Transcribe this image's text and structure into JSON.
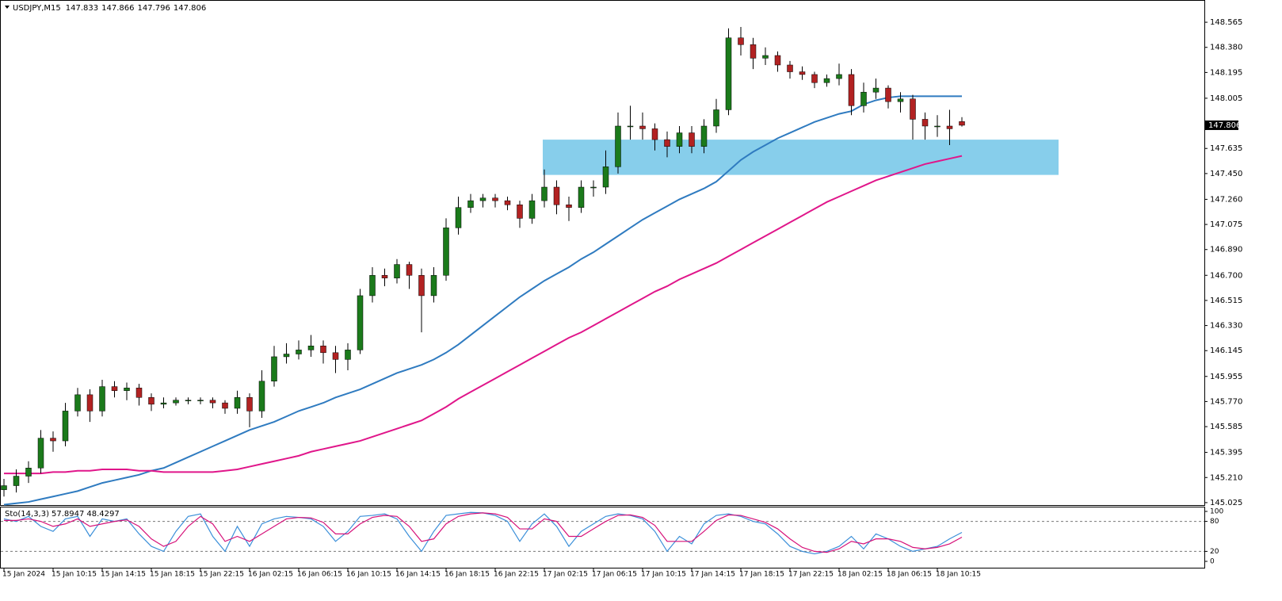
{
  "chart_data": [
    {
      "type": "candlestick",
      "title": "USDJPY,M15",
      "categories": [
        "15 Jan 2024",
        null,
        null,
        null,
        "15 Jan 10:15",
        null,
        null,
        null,
        "15 Jan 14:15",
        null,
        null,
        null,
        "15 Jan 18:15",
        null,
        null,
        null,
        "15 Jan 22:15",
        null,
        null,
        null,
        "16 Jan 02:15",
        null,
        null,
        null,
        "16 Jan 06:15",
        null,
        null,
        null,
        "16 Jan 10:15",
        null,
        null,
        null,
        "16 Jan 14:15",
        null,
        null,
        null,
        "16 Jan 18:15",
        null,
        null,
        null,
        "16 Jan 22:15",
        null,
        null,
        null,
        "17 Jan 02:15",
        null,
        null,
        null,
        "17 Jan 06:15",
        null,
        null,
        null,
        "17 Jan 10:15",
        null,
        null,
        null,
        "17 Jan 14:15",
        null,
        null,
        null,
        "17 Jan 18:15",
        null,
        null,
        null,
        "17 Jan 22:15",
        null,
        null,
        null,
        "18 Jan 02:15",
        null,
        null,
        null,
        "18 Jan 06:15",
        null,
        null,
        null,
        "18 Jan 10:15",
        null,
        null
      ],
      "open": [
        145.12,
        145.15,
        145.22,
        145.28,
        145.5,
        145.48,
        145.7,
        145.82,
        145.7,
        145.88,
        145.85,
        145.87,
        145.8,
        145.75,
        145.76,
        145.78,
        145.78,
        145.78,
        145.76,
        145.72,
        145.8,
        145.7,
        145.92,
        146.1,
        146.12,
        146.15,
        146.18,
        146.13,
        146.08,
        146.15,
        146.55,
        146.7,
        146.68,
        146.78,
        146.7,
        146.55,
        146.7,
        147.05,
        147.2,
        147.25,
        147.27,
        147.25,
        147.22,
        147.12,
        147.25,
        147.35,
        147.22,
        147.2,
        147.35,
        147.35,
        147.5,
        147.8,
        147.8,
        147.78,
        147.7,
        147.65,
        147.75,
        147.65,
        147.8,
        147.92,
        148.45,
        148.4,
        148.3,
        148.32,
        148.25,
        148.2,
        148.18,
        148.12,
        148.15,
        148.18,
        147.95,
        148.05,
        148.08,
        147.98,
        148.0,
        147.85,
        147.8,
        147.8,
        147.833
      ],
      "high": [
        145.2,
        145.27,
        145.33,
        145.56,
        145.55,
        145.76,
        145.87,
        145.86,
        145.93,
        145.92,
        145.91,
        145.9,
        145.83,
        145.8,
        145.8,
        145.8,
        145.8,
        145.8,
        145.78,
        145.85,
        145.83,
        146.0,
        146.18,
        146.2,
        146.22,
        146.26,
        146.22,
        146.18,
        146.2,
        146.6,
        146.76,
        146.75,
        146.82,
        146.8,
        146.75,
        146.76,
        147.12,
        147.28,
        147.3,
        147.3,
        147.3,
        147.28,
        147.25,
        147.3,
        147.48,
        147.4,
        147.28,
        147.4,
        147.4,
        147.62,
        147.9,
        147.95,
        147.9,
        147.82,
        147.76,
        147.8,
        147.8,
        147.85,
        148.0,
        148.52,
        148.53,
        148.45,
        148.38,
        148.35,
        148.28,
        148.24,
        148.2,
        148.18,
        148.26,
        148.22,
        148.12,
        148.15,
        148.1,
        148.05,
        148.03,
        147.9,
        147.88,
        147.92,
        147.866
      ],
      "low": [
        145.07,
        145.1,
        145.17,
        145.24,
        145.4,
        145.44,
        145.66,
        145.62,
        145.66,
        145.8,
        145.78,
        145.74,
        145.7,
        145.72,
        145.74,
        145.75,
        145.75,
        145.72,
        145.68,
        145.68,
        145.58,
        145.65,
        145.88,
        146.05,
        146.08,
        146.1,
        146.05,
        145.98,
        146.0,
        146.12,
        146.5,
        146.62,
        146.64,
        146.6,
        146.28,
        146.5,
        146.66,
        147.0,
        147.16,
        147.2,
        147.2,
        147.18,
        147.05,
        147.08,
        147.2,
        147.15,
        147.1,
        147.16,
        147.28,
        147.3,
        147.45,
        147.7,
        147.7,
        147.62,
        147.57,
        147.6,
        147.6,
        147.6,
        147.75,
        147.88,
        148.32,
        148.22,
        148.25,
        148.2,
        148.15,
        148.14,
        148.08,
        148.09,
        148.1,
        147.88,
        147.9,
        148.0,
        147.93,
        147.9,
        147.7,
        147.7,
        147.72,
        147.66,
        147.796
      ],
      "close": [
        145.15,
        145.22,
        145.28,
        145.5,
        145.48,
        145.7,
        145.82,
        145.7,
        145.88,
        145.85,
        145.87,
        145.8,
        145.75,
        145.76,
        145.78,
        145.78,
        145.78,
        145.76,
        145.72,
        145.8,
        145.7,
        145.92,
        146.1,
        146.12,
        146.15,
        146.18,
        146.13,
        146.08,
        146.15,
        146.55,
        146.7,
        146.68,
        146.78,
        146.7,
        146.55,
        146.7,
        147.05,
        147.2,
        147.25,
        147.27,
        147.25,
        147.22,
        147.12,
        147.25,
        147.35,
        147.22,
        147.2,
        147.35,
        147.35,
        147.5,
        147.8,
        147.8,
        147.78,
        147.7,
        147.65,
        147.75,
        147.65,
        147.8,
        147.92,
        148.45,
        148.4,
        148.3,
        148.32,
        148.25,
        148.2,
        148.18,
        148.12,
        148.15,
        148.18,
        147.95,
        148.05,
        148.08,
        147.98,
        148.0,
        147.85,
        147.8,
        147.8,
        147.78,
        147.806
      ],
      "up_color": "#1b7a1b",
      "down_color": "#b22222",
      "overlays": [
        {
          "color": "#2f7bc0",
          "values": [
            145.01,
            145.02,
            145.03,
            145.05,
            145.07,
            145.09,
            145.11,
            145.14,
            145.17,
            145.19,
            145.21,
            145.23,
            145.26,
            145.28,
            145.32,
            145.36,
            145.4,
            145.44,
            145.48,
            145.52,
            145.56,
            145.59,
            145.62,
            145.66,
            145.7,
            145.73,
            145.76,
            145.8,
            145.83,
            145.86,
            145.9,
            145.94,
            145.98,
            146.01,
            146.04,
            146.08,
            146.13,
            146.19,
            146.26,
            146.33,
            146.4,
            146.47,
            146.54,
            146.6,
            146.66,
            146.71,
            146.76,
            146.82,
            146.87,
            146.93,
            146.99,
            147.05,
            147.11,
            147.16,
            147.21,
            147.26,
            147.3,
            147.34,
            147.39,
            147.47,
            147.55,
            147.61,
            147.66,
            147.71,
            147.75,
            147.79,
            147.83,
            147.86,
            147.89,
            147.91,
            147.96,
            147.99,
            148.01,
            148.02,
            148.02,
            148.02,
            148.02,
            148.02,
            148.02
          ]
        },
        {
          "color": "#e0168a",
          "values": [
            145.24,
            145.24,
            145.24,
            145.24,
            145.25,
            145.25,
            145.26,
            145.26,
            145.27,
            145.27,
            145.27,
            145.26,
            145.26,
            145.25,
            145.25,
            145.25,
            145.25,
            145.25,
            145.26,
            145.27,
            145.29,
            145.31,
            145.33,
            145.35,
            145.37,
            145.4,
            145.42,
            145.44,
            145.46,
            145.48,
            145.51,
            145.54,
            145.57,
            145.6,
            145.63,
            145.68,
            145.73,
            145.79,
            145.84,
            145.89,
            145.94,
            145.99,
            146.04,
            146.09,
            146.14,
            146.19,
            146.24,
            146.28,
            146.33,
            146.38,
            146.43,
            146.48,
            146.53,
            146.58,
            146.62,
            146.67,
            146.71,
            146.75,
            146.79,
            146.84,
            146.89,
            146.94,
            146.99,
            147.04,
            147.09,
            147.14,
            147.19,
            147.24,
            147.28,
            147.32,
            147.36,
            147.4,
            147.43,
            147.46,
            147.49,
            147.52,
            147.54,
            147.56,
            147.58
          ]
        }
      ],
      "zone": {
        "low": 147.44,
        "high": 147.7,
        "color": "#87ceeb"
      },
      "ylim": [
        145.007,
        148.729
      ],
      "yticks": [
        148.565,
        {
          "value": 148.38,
          "label": "148.380"
        },
        148.195,
        148.005,
        147.635,
        {
          "value": 147.45,
          "label": "147.450"
        },
        {
          "value": 147.26,
          "label": "147.260"
        },
        147.075,
        {
          "value": 146.89,
          "label": "146.890"
        },
        {
          "value": 146.7,
          "label": "146.700"
        },
        146.515,
        {
          "value": 146.33,
          "label": "146.330"
        },
        146.145,
        145.955,
        {
          "value": 145.77,
          "label": "145.770"
        },
        145.585,
        145.395,
        {
          "value": 145.21,
          "label": "145.210"
        },
        145.025
      ]
    },
    {
      "type": "line",
      "title": "Sto(14,3,3)",
      "series": [
        {
          "color": "#3b8fd9",
          "values": [
            85,
            80,
            90,
            70,
            60,
            85,
            90,
            50,
            85,
            80,
            85,
            55,
            30,
            20,
            60,
            90,
            95,
            50,
            20,
            70,
            30,
            75,
            85,
            90,
            88,
            85,
            70,
            40,
            60,
            90,
            92,
            95,
            85,
            50,
            20,
            60,
            92,
            95,
            98,
            97,
            92,
            80,
            40,
            75,
            95,
            70,
            30,
            60,
            75,
            90,
            95,
            92,
            85,
            60,
            20,
            50,
            35,
            75,
            92,
            95,
            90,
            80,
            75,
            55,
            30,
            20,
            15,
            20,
            30,
            50,
            25,
            55,
            45,
            30,
            20,
            25,
            30,
            45,
            57.8947
          ]
        },
        {
          "color": "#d6127a",
          "values": [
            82,
            82,
            85,
            80,
            70,
            75,
            85,
            70,
            75,
            80,
            83,
            70,
            45,
            30,
            40,
            70,
            90,
            75,
            40,
            50,
            40,
            55,
            70,
            85,
            88,
            87,
            78,
            55,
            55,
            75,
            88,
            92,
            90,
            70,
            40,
            45,
            75,
            90,
            95,
            97,
            95,
            88,
            65,
            65,
            85,
            80,
            50,
            50,
            65,
            80,
            92,
            93,
            88,
            72,
            40,
            40,
            40,
            60,
            82,
            93,
            92,
            85,
            78,
            65,
            45,
            28,
            20,
            18,
            25,
            40,
            35,
            45,
            45,
            40,
            28,
            25,
            28,
            35,
            48.4297
          ]
        }
      ],
      "ylim": [
        0,
        100
      ],
      "yticks": [
        100,
        80,
        20,
        0
      ],
      "levels": [
        80,
        20
      ]
    }
  ]
}
